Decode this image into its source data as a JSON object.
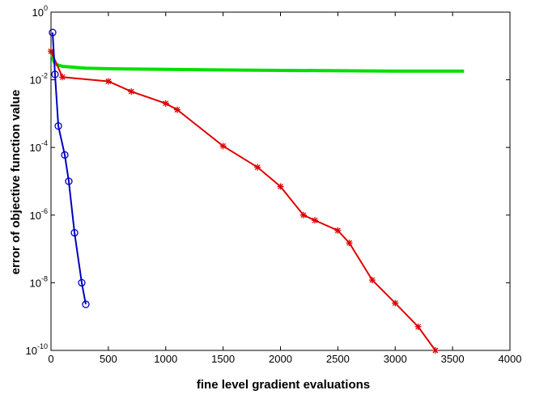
{
  "chart_data": {
    "type": "line",
    "xlabel": "fine level gradient evaluations",
    "ylabel": "error of objective function value",
    "xlim": [
      0,
      4000
    ],
    "xticks": [
      0,
      500,
      1000,
      1500,
      2000,
      2500,
      3000,
      3500,
      4000
    ],
    "ylim": [
      1e-10,
      1
    ],
    "yscale": "log",
    "yticks": [
      {
        "value": 1e-10,
        "label": "10^-10"
      },
      {
        "value": 1e-08,
        "label": "10^-8"
      },
      {
        "value": 1e-06,
        "label": "10^-6"
      },
      {
        "value": 0.0001,
        "label": "10^-4"
      },
      {
        "value": 0.01,
        "label": "10^-2"
      },
      {
        "value": 1,
        "label": "10^0"
      }
    ],
    "series": [
      {
        "color": "#00e000",
        "marker": "none",
        "x": [
          0,
          25,
          50,
          100,
          300,
          600,
          1200,
          2000,
          3000,
          3600
        ],
        "values": [
          0.07,
          0.035,
          0.028,
          0.025,
          0.022,
          0.021,
          0.02,
          0.019,
          0.018,
          0.018
        ]
      },
      {
        "color": "#e00000",
        "marker": "star",
        "x": [
          0,
          100,
          500,
          700,
          1000,
          1100,
          1500,
          1800,
          2000,
          2200,
          2300,
          2500,
          2600,
          2800,
          3000,
          3200,
          3350
        ],
        "values": [
          0.07,
          0.012,
          0.009,
          0.0045,
          0.002,
          0.0013,
          0.00011,
          2.6e-05,
          7e-06,
          1e-06,
          7e-07,
          3.5e-07,
          1.5e-07,
          1.2e-08,
          2.5e-09,
          5e-10,
          1e-10
        ]
      },
      {
        "color": "#0000c0",
        "marker": "circle",
        "x": [
          14,
          35,
          64,
          120,
          155,
          205,
          268,
          303
        ],
        "values": [
          0.25,
          0.0145,
          0.00043,
          6e-05,
          1e-05,
          3e-07,
          1e-08,
          2.3e-09
        ]
      }
    ]
  }
}
